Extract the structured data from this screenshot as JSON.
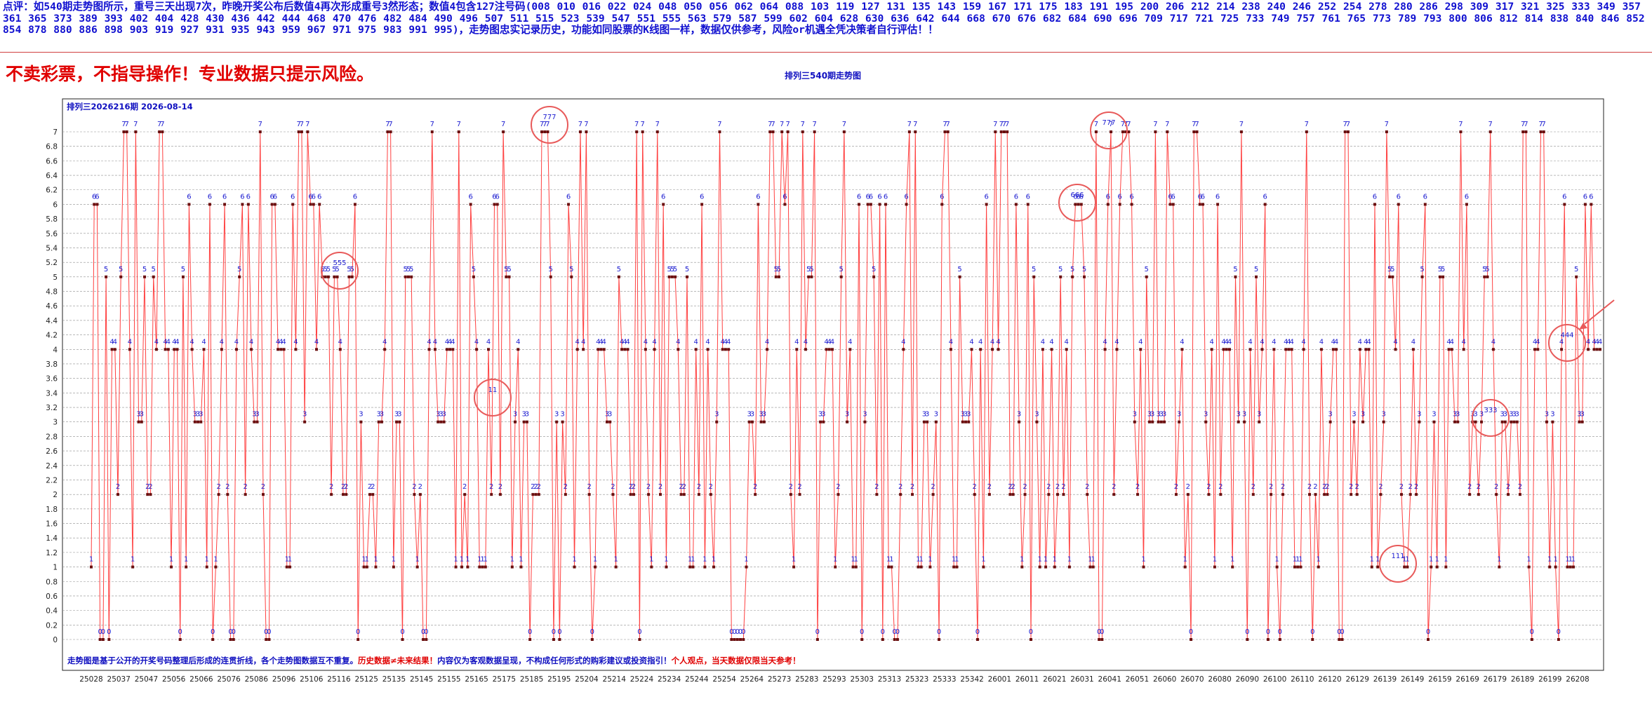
{
  "header": {
    "comment": "点评：如540期走势图所示，重号三天出现7次，昨晚开奖公布后数值4再次形成重号3然形态；数值4包含127注号码(008  010  016  022  024  048  050  056  062  064  088  103  119  127  131  135  143  159  167  171  175  183  191  195  200  206  212  214  238  240  246  252  254  278  280  286  298  309  317  321  325  333  349  357  361  365  373  389  393  402  404  428  430  436  442  444  468  470  476  482  484  490  496  507  511  515  523  539  547  551  555  563  579  587  599  602  604  628  630  636  642  644  668  670  676  682  684  690  696  709  717  721  725  733  749  757  761  765  773  789  793  800  806  812  814  838  840  846  852  854  878  880  886  898  903  919  927  931  935  943  959  967  971  975  983  991  995)，走势图忠实记录历史，功能如同股票的K线图一样，数据仅供参考，风险or机遇全凭决策者自行评估！！",
    "warning": "不卖彩票，不指导操作！专业数据只提示风险。",
    "chart_title": "排列三540期走势图"
  },
  "chart_data": {
    "type": "line",
    "subtitle": "排列三2026216期  2026-08-14",
    "ylim": [
      0,
      7
    ],
    "yticks": [
      "0",
      "0.2",
      "0.4",
      "0.6",
      "0.8",
      "1",
      "1.2",
      "1.4",
      "1.6",
      "1.8",
      "2",
      "2.2",
      "2.4",
      "2.6",
      "2.8",
      "3",
      "3.2",
      "3.4",
      "3.6",
      "3.8",
      "4",
      "4.2",
      "4.4",
      "4.6",
      "4.8",
      "5",
      "5.2",
      "5.4",
      "5.6",
      "5.8",
      "6",
      "6.2",
      "6.4",
      "6.6",
      "6.8",
      "7"
    ],
    "xticks": [
      "25028",
      "25037",
      "25047",
      "25056",
      "25066",
      "25076",
      "25086",
      "25096",
      "25106",
      "25116",
      "25125",
      "25135",
      "25145",
      "25155",
      "25165",
      "25175",
      "25185",
      "25195",
      "25204",
      "25214",
      "25224",
      "25234",
      "25244",
      "25254",
      "25264",
      "25273",
      "25283",
      "25293",
      "25303",
      "25313",
      "25323",
      "25333",
      "25342",
      "26001",
      "26011",
      "26021",
      "26031",
      "26041",
      "26051",
      "26060",
      "26070",
      "26080",
      "26090",
      "26100",
      "26110",
      "26120",
      "26129",
      "26139",
      "26149",
      "26159",
      "26169",
      "26179",
      "26189",
      "26199",
      "26208"
    ],
    "values": [
      1,
      6,
      6,
      0,
      0,
      5,
      0,
      4,
      4,
      2,
      5,
      7,
      7,
      4,
      1,
      7,
      3,
      3,
      5,
      2,
      2,
      5,
      4,
      7,
      7,
      4,
      4,
      1,
      4,
      4,
      0,
      5,
      1,
      6,
      4,
      3,
      3,
      3,
      4,
      1,
      6,
      0,
      1,
      2,
      4,
      6,
      2,
      0,
      0,
      4,
      5,
      6,
      2,
      6,
      4,
      3,
      3,
      7,
      2,
      0,
      0,
      6,
      6,
      4,
      4,
      4,
      1,
      1,
      6,
      4,
      7,
      7,
      3,
      7,
      6,
      6,
      4,
      6,
      5,
      5,
      5,
      2,
      5,
      5,
      4,
      2,
      2,
      5,
      5,
      6,
      0,
      3,
      1,
      1,
      2,
      2,
      1,
      3,
      3,
      4,
      7,
      7,
      1,
      3,
      3,
      0,
      5,
      5,
      5,
      2,
      1,
      2,
      0,
      0,
      4,
      7,
      4,
      3,
      3,
      3,
      4,
      4,
      4,
      1,
      7,
      1,
      2,
      1,
      6,
      5,
      4,
      1,
      1,
      1,
      4,
      2,
      6,
      6,
      2,
      7,
      5,
      5,
      1,
      3,
      4,
      1,
      3,
      3,
      0,
      2,
      2,
      2,
      7,
      7,
      7,
      5,
      0,
      3,
      0,
      3,
      2,
      6,
      5,
      1,
      4,
      7,
      4,
      7,
      2,
      0,
      1,
      4,
      4,
      4,
      3,
      3,
      2,
      1,
      5,
      4,
      4,
      4,
      2,
      2,
      7,
      0,
      7,
      4,
      2,
      1,
      4,
      7,
      2,
      6,
      1,
      5,
      5,
      5,
      4,
      2,
      2,
      5,
      1,
      1,
      4,
      2,
      6,
      1,
      4,
      2,
      1,
      3,
      7,
      4,
      4,
      4,
      0,
      0,
      0,
      0,
      0,
      1,
      3,
      3,
      2,
      6,
      3,
      3,
      4,
      7,
      7,
      5,
      5,
      7,
      6,
      7,
      2,
      1,
      4,
      2,
      7,
      4,
      5,
      5,
      7,
      0,
      3,
      3,
      4,
      4,
      4,
      1,
      2,
      5,
      7,
      3,
      4,
      1,
      1,
      6,
      0,
      3,
      6,
      6,
      5,
      2,
      6,
      0,
      6,
      1,
      1,
      0,
      0,
      2,
      4,
      6,
      7,
      2,
      7,
      1,
      1,
      3,
      3,
      1,
      2,
      3,
      0,
      6,
      7,
      7,
      4,
      1,
      1,
      5,
      3,
      3,
      3,
      4,
      2,
      0,
      4,
      1,
      6,
      2,
      4,
      7,
      4,
      7,
      7,
      7,
      2,
      2,
      6,
      3,
      1,
      2,
      6,
      0,
      5,
      3,
      1,
      4,
      1,
      2,
      4,
      1,
      2,
      5,
      2,
      4,
      1,
      5,
      6,
      6,
      6,
      5,
      2,
      1,
      1,
      7,
      0,
      0,
      4,
      6,
      7,
      2,
      4,
      6,
      7,
      7,
      7,
      6,
      3,
      2,
      4,
      1,
      5,
      3,
      3,
      7,
      3,
      3,
      3,
      7,
      6,
      6,
      2,
      3,
      4,
      1,
      2,
      0,
      7,
      7,
      6,
      6,
      3,
      2,
      4,
      1,
      6,
      2,
      4,
      4,
      4,
      1,
      5,
      3,
      7,
      3,
      0,
      4,
      2,
      5,
      3,
      4,
      6,
      0,
      2,
      4,
      1,
      0,
      2,
      4,
      4,
      4,
      1,
      1,
      1,
      4,
      7,
      2,
      0,
      2,
      1,
      4,
      2,
      2,
      3,
      4,
      4,
      0,
      0,
      7,
      7,
      2,
      3,
      2,
      4,
      3,
      4,
      4,
      1,
      6,
      1,
      2,
      3,
      7,
      5,
      5,
      4,
      6,
      2,
      1,
      1,
      2,
      4,
      2,
      3,
      5,
      6,
      0,
      1,
      3,
      1,
      5,
      5,
      1,
      4,
      4,
      3,
      3,
      7,
      4,
      6,
      2,
      3,
      3,
      2,
      3,
      5,
      5,
      7,
      4,
      2,
      1,
      3,
      3,
      2,
      3,
      3,
      3,
      2,
      7,
      7,
      1,
      0,
      4,
      4,
      7,
      7,
      3,
      1,
      3,
      1,
      0,
      4,
      6,
      1,
      1,
      1,
      5,
      3,
      3,
      6,
      4,
      6,
      4,
      4,
      4
    ],
    "highlights": [
      {
        "label": "555"
      },
      {
        "label": "11"
      },
      {
        "label": "777"
      },
      {
        "label": "666"
      },
      {
        "label": "777"
      },
      {
        "label": "111"
      },
      {
        "label": "333"
      },
      {
        "label": "444"
      }
    ],
    "footer_note": "走势图是基于公开的开奖号码整理后形成的连贯折线，各个走势图数据互不重复。",
    "footer_warning1": "历史数据≠未来结果！",
    "footer_note2": "内容仅为客观数据呈现，不构成任何形式的购彩建议或投资指引！",
    "footer_warning2": "个人观点，当天数据仅限当天参考！",
    "colors": {
      "line": "#ff4040",
      "point": "#6a1010",
      "label": "#1a1ad0",
      "grid": "#909090",
      "highlight": "#e85a5a"
    }
  }
}
